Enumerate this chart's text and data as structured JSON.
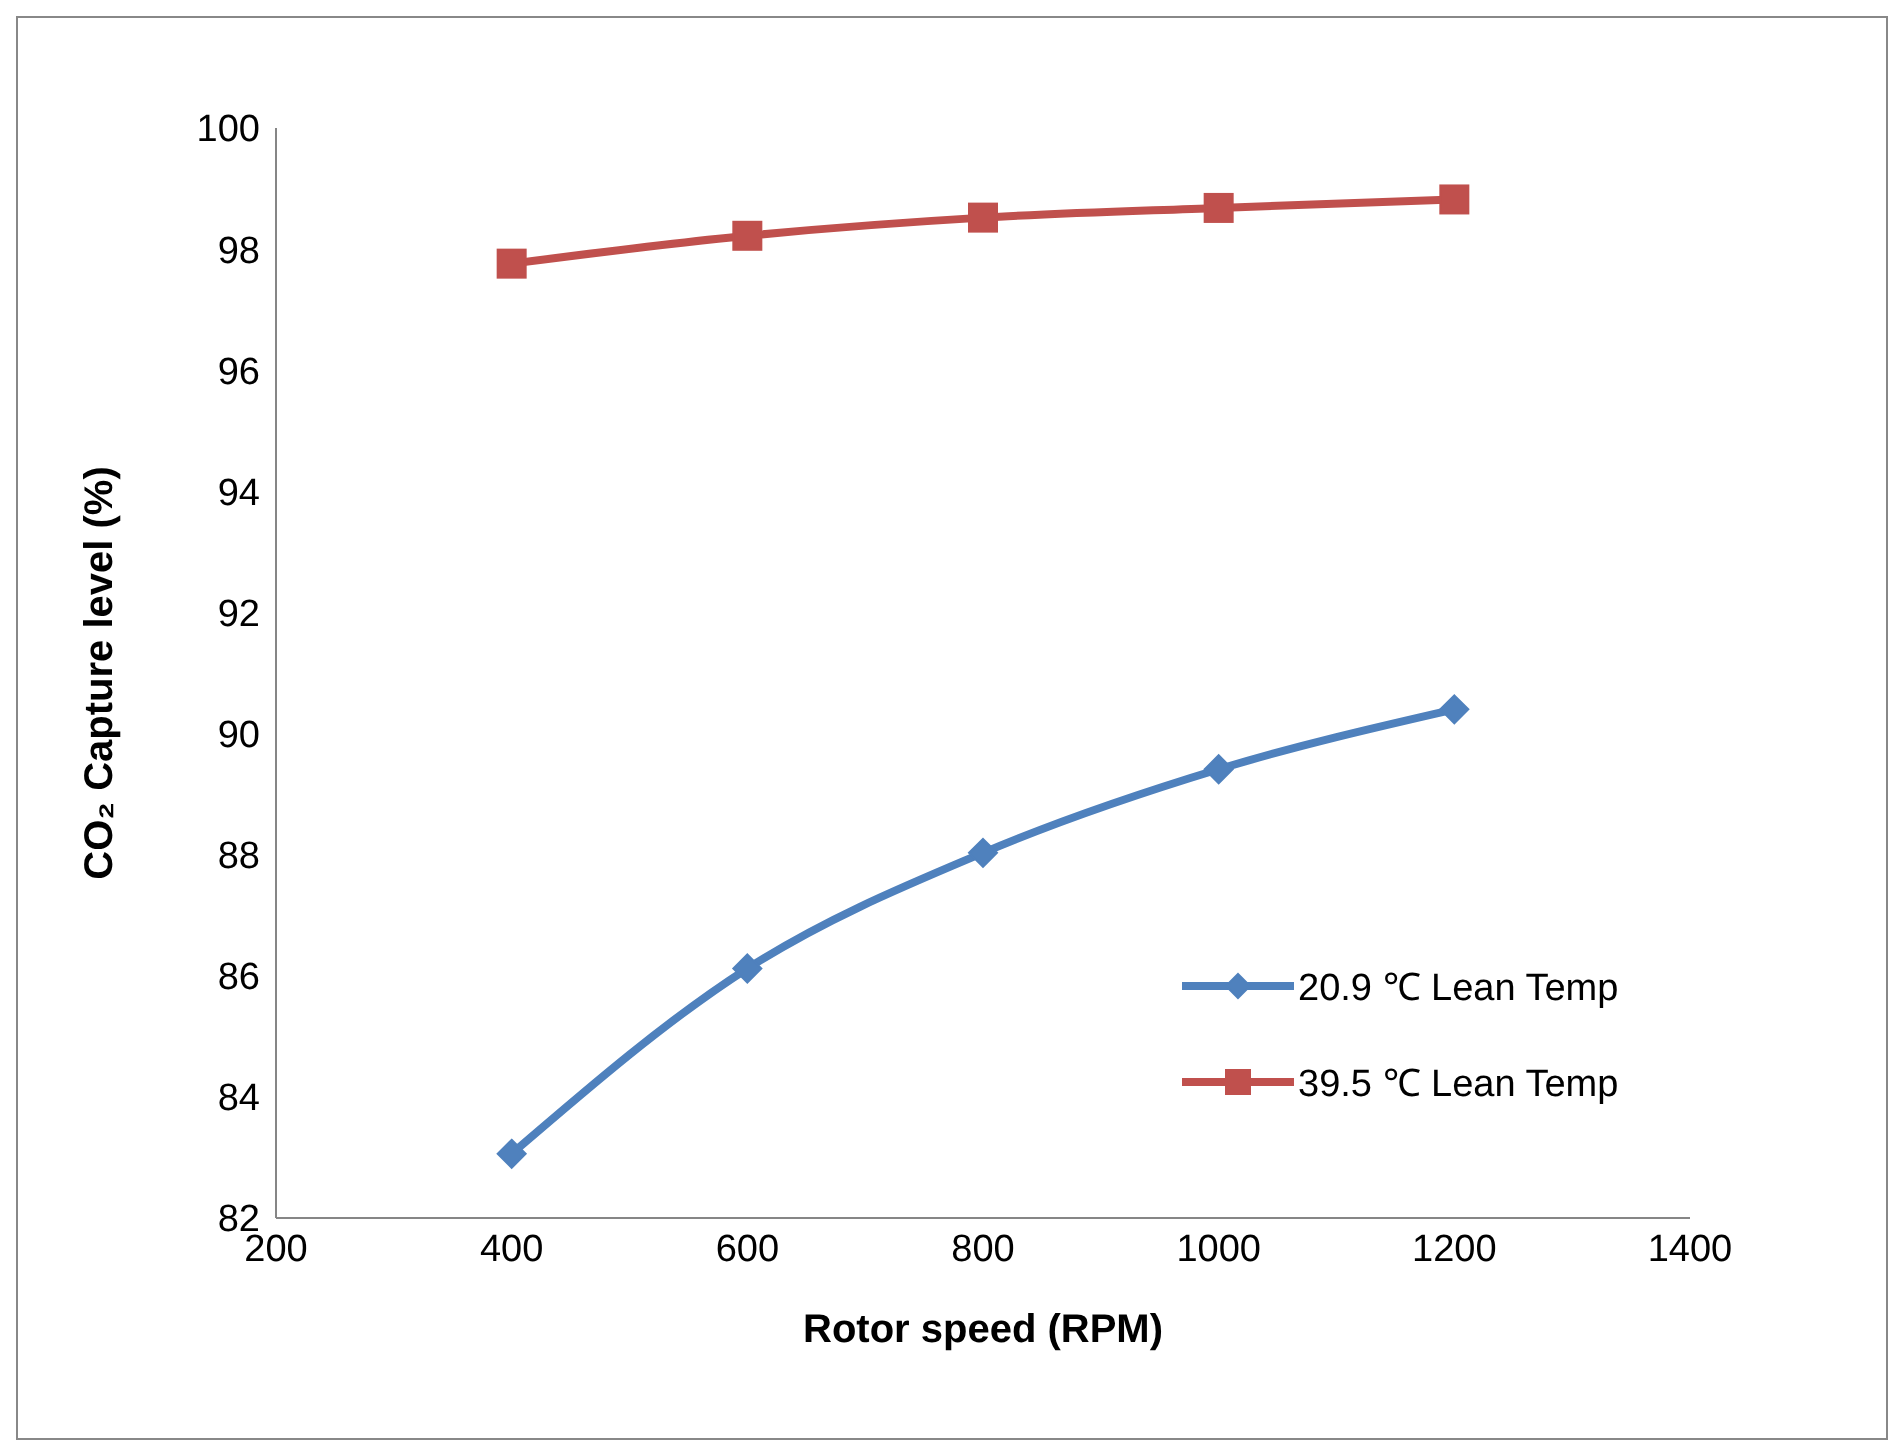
{
  "chart_data": {
    "type": "line",
    "xlabel": "Rotor speed (RPM)",
    "ylabel": "CO₂ Capture level (%)",
    "x": [
      400,
      600,
      800,
      1000,
      1200
    ],
    "series": [
      {
        "name": "20.9 ℃ Lean Temp",
        "color": "#4f81bd",
        "marker": "diamond",
        "values": [
          83.06,
          86.12,
          88.03,
          89.41,
          90.4
        ]
      },
      {
        "name": "39.5 ℃ Lean Temp",
        "color": "#c0504d",
        "marker": "square",
        "values": [
          97.76,
          98.22,
          98.52,
          98.68,
          98.82
        ]
      }
    ],
    "xlim": [
      200,
      1400
    ],
    "xticks": [
      200,
      400,
      600,
      800,
      1000,
      1200,
      1400
    ],
    "ylim": [
      82,
      100
    ],
    "yticks": [
      82,
      84,
      86,
      88,
      90,
      92,
      94,
      96,
      98,
      100
    ],
    "grid": false,
    "legend": "right",
    "line_style": "solid"
  }
}
